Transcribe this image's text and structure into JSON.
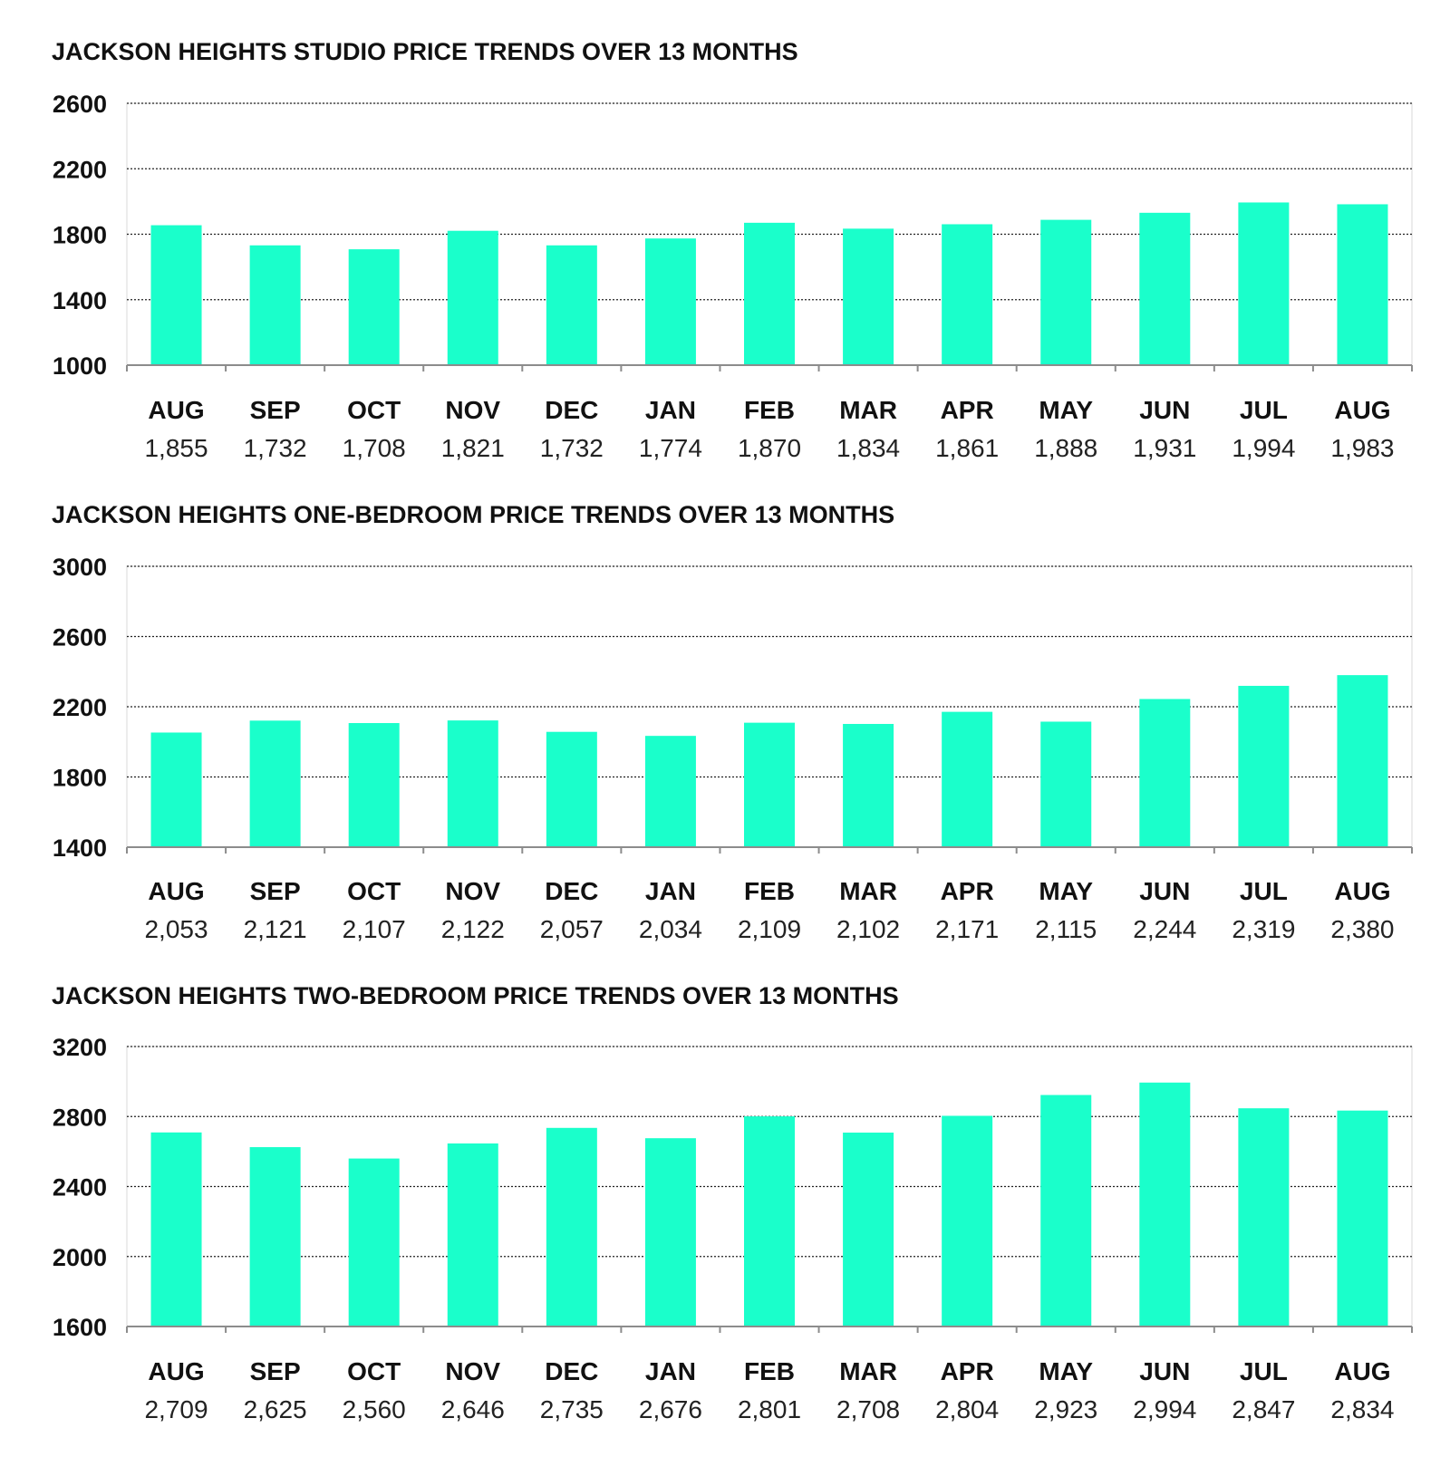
{
  "colors": {
    "bar": "#1affcb",
    "text": "#111111",
    "grid": "#222222",
    "axis": "#8c8c8c"
  },
  "chart_data": [
    {
      "type": "bar",
      "title": "JACKSON HEIGHTS STUDIO PRICE TRENDS OVER 13 MONTHS",
      "categories": [
        "AUG",
        "SEP",
        "OCT",
        "NOV",
        "DEC",
        "JAN",
        "FEB",
        "MAR",
        "APR",
        "MAY",
        "JUN",
        "JUL",
        "AUG"
      ],
      "values": [
        1855,
        1732,
        1708,
        1821,
        1732,
        1774,
        1870,
        1834,
        1861,
        1888,
        1931,
        1994,
        1983
      ],
      "value_labels": [
        "1,855",
        "1,732",
        "1,708",
        "1,821",
        "1,732",
        "1,774",
        "1,870",
        "1,834",
        "1,861",
        "1,888",
        "1,931",
        "1,994",
        "1,983"
      ],
      "yticks": [
        1000,
        1400,
        1800,
        2200,
        2600
      ],
      "ylim": [
        1000,
        2600
      ],
      "grid": true
    },
    {
      "type": "bar",
      "title": "JACKSON HEIGHTS ONE-BEDROOM PRICE TRENDS OVER 13 MONTHS",
      "categories": [
        "AUG",
        "SEP",
        "OCT",
        "NOV",
        "DEC",
        "JAN",
        "FEB",
        "MAR",
        "APR",
        "MAY",
        "JUN",
        "JUL",
        "AUG"
      ],
      "values": [
        2053,
        2121,
        2107,
        2122,
        2057,
        2034,
        2109,
        2102,
        2171,
        2115,
        2244,
        2319,
        2380
      ],
      "value_labels": [
        "2,053",
        "2,121",
        "2,107",
        "2,122",
        "2,057",
        "2,034",
        "2,109",
        "2,102",
        "2,171",
        "2,115",
        "2,244",
        "2,319",
        "2,380"
      ],
      "yticks": [
        1400,
        1800,
        2200,
        2600,
        3000
      ],
      "ylim": [
        1400,
        3000
      ],
      "grid": true
    },
    {
      "type": "bar",
      "title": "JACKSON HEIGHTS TWO-BEDROOM PRICE TRENDS OVER 13 MONTHS",
      "categories": [
        "AUG",
        "SEP",
        "OCT",
        "NOV",
        "DEC",
        "JAN",
        "FEB",
        "MAR",
        "APR",
        "MAY",
        "JUN",
        "JUL",
        "AUG"
      ],
      "values": [
        2709,
        2625,
        2560,
        2646,
        2735,
        2676,
        2801,
        2708,
        2804,
        2923,
        2994,
        2847,
        2834
      ],
      "value_labels": [
        "2,709",
        "2,625",
        "2,560",
        "2,646",
        "2,735",
        "2,676",
        "2,801",
        "2,708",
        "2,804",
        "2,923",
        "2,994",
        "2,847",
        "2,834"
      ],
      "yticks": [
        1600,
        2000,
        2400,
        2800,
        3200
      ],
      "ylim": [
        1600,
        3200
      ],
      "grid": true
    }
  ]
}
